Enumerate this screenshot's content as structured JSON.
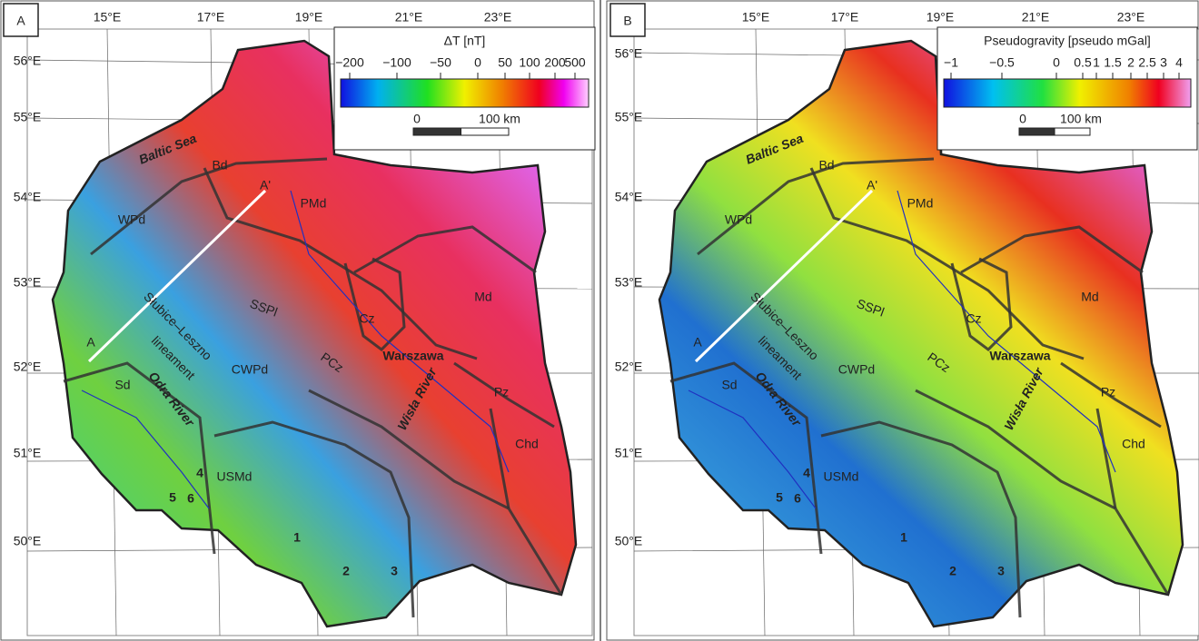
{
  "panels": [
    {
      "letter": "A",
      "legend": {
        "title": "ΔT [nT]",
        "ticks": [
          "−200",
          "−100",
          "−50",
          "0",
          "50",
          "100",
          "200",
          "500"
        ],
        "scale": [
          "0",
          "100 km"
        ]
      },
      "lon_labels": [
        "15°E",
        "17°E",
        "19°E",
        "21°E",
        "23°E"
      ],
      "lat_labels": [
        "56°E",
        "55°E",
        "54°E",
        "53°E",
        "52°E",
        "51°E",
        "50°E"
      ],
      "regions": [
        "Baltic Sea",
        "Bd",
        "PMd",
        "WPd",
        "Cz",
        "Md",
        "SSPl",
        "Słubice–Leszno",
        "lineament",
        "CWPd",
        "PCz",
        "Warszawa",
        "Wisła River",
        "Pz",
        "Sd",
        "Odra River",
        "USMd",
        "Chd",
        "A",
        "A'"
      ],
      "sites": [
        "1",
        "2",
        "3",
        "4",
        "5",
        "6"
      ]
    },
    {
      "letter": "B",
      "legend": {
        "title": "Pseudogravity  [pseudo mGal]",
        "ticks": [
          "−1",
          "−0.5",
          "0",
          "0.5",
          "1",
          "1.5",
          "2",
          "2.5",
          "3",
          "4"
        ],
        "scale": [
          "0",
          "100 km"
        ]
      },
      "lon_labels": [
        "15°E",
        "17°E",
        "19°E",
        "21°E",
        "23°E"
      ],
      "lat_labels": [
        "56°E",
        "55°E",
        "54°E",
        "53°E",
        "52°E",
        "51°E",
        "50°E"
      ],
      "regions": [
        "Baltic Sea",
        "Bd",
        "PMd",
        "WPd",
        "Cz",
        "Md",
        "SSPl",
        "Słubice–Leszno",
        "lineament",
        "CWPd",
        "PCz",
        "Warszawa",
        "Wisła River",
        "Pz",
        "Sd",
        "Odra River",
        "USMd",
        "Chd",
        "A",
        "A'"
      ],
      "sites": [
        "1",
        "2",
        "3",
        "4",
        "5",
        "6"
      ]
    }
  ]
}
